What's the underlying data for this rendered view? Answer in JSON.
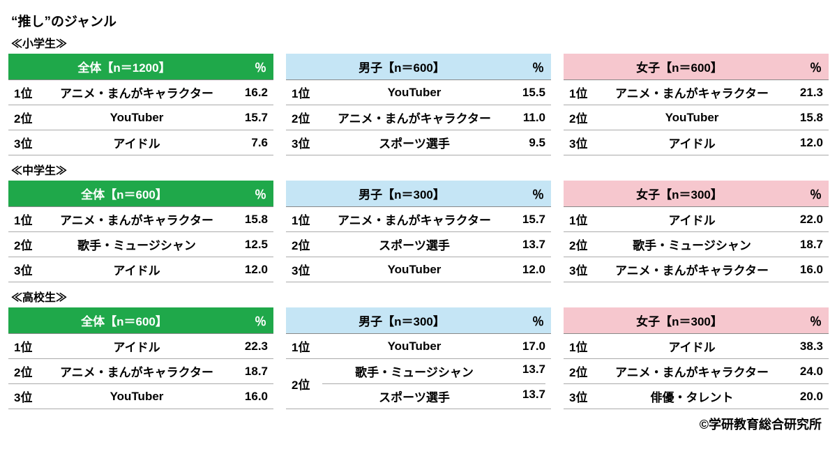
{
  "title": "“推し”のジャンル",
  "footer": "©学研教育総合研究所",
  "percentLabel": "％",
  "colors": {
    "green": "#1fa84a",
    "blue": "#c5e5f5",
    "pink": "#f6c7ce",
    "border": "#aaaaaa",
    "text": "#000000",
    "bg": "#ffffff"
  },
  "groups": [
    {
      "label": "≪小学生≫",
      "panels": [
        {
          "color": "green",
          "header": "全体【n＝1200】",
          "rows": [
            {
              "rank": "1位",
              "item": "アニメ・まんがキャラクター",
              "pct": "16.2"
            },
            {
              "rank": "2位",
              "item": "YouTuber",
              "pct": "15.7"
            },
            {
              "rank": "3位",
              "item": "アイドル",
              "pct": "7.6"
            }
          ]
        },
        {
          "color": "blue",
          "header": "男子【n＝600】",
          "rows": [
            {
              "rank": "1位",
              "item": "YouTuber",
              "pct": "15.5"
            },
            {
              "rank": "2位",
              "item": "アニメ・まんがキャラクター",
              "pct": "11.0"
            },
            {
              "rank": "3位",
              "item": "スポーツ選手",
              "pct": "9.5"
            }
          ]
        },
        {
          "color": "pink",
          "header": "女子【n＝600】",
          "rows": [
            {
              "rank": "1位",
              "item": "アニメ・まんがキャラクター",
              "pct": "21.3"
            },
            {
              "rank": "2位",
              "item": "YouTuber",
              "pct": "15.8"
            },
            {
              "rank": "3位",
              "item": "アイドル",
              "pct": "12.0"
            }
          ]
        }
      ]
    },
    {
      "label": "≪中学生≫",
      "panels": [
        {
          "color": "green",
          "header": "全体【n＝600】",
          "rows": [
            {
              "rank": "1位",
              "item": "アニメ・まんがキャラクター",
              "pct": "15.8"
            },
            {
              "rank": "2位",
              "item": "歌手・ミュージシャン",
              "pct": "12.5"
            },
            {
              "rank": "3位",
              "item": "アイドル",
              "pct": "12.0"
            }
          ]
        },
        {
          "color": "blue",
          "header": "男子【n＝300】",
          "rows": [
            {
              "rank": "1位",
              "item": "アニメ・まんがキャラクター",
              "pct": "15.7"
            },
            {
              "rank": "2位",
              "item": "スポーツ選手",
              "pct": "13.7"
            },
            {
              "rank": "3位",
              "item": "YouTuber",
              "pct": "12.0"
            }
          ]
        },
        {
          "color": "pink",
          "header": "女子【n＝300】",
          "rows": [
            {
              "rank": "1位",
              "item": "アイドル",
              "pct": "22.0"
            },
            {
              "rank": "2位",
              "item": "歌手・ミュージシャン",
              "pct": "18.7"
            },
            {
              "rank": "3位",
              "item": "アニメ・まんがキャラクター",
              "pct": "16.0"
            }
          ]
        }
      ]
    },
    {
      "label": "≪高校生≫",
      "panels": [
        {
          "color": "green",
          "header": "全体【n＝600】",
          "rows": [
            {
              "rank": "1位",
              "item": "アイドル",
              "pct": "22.3"
            },
            {
              "rank": "2位",
              "item": "アニメ・まんがキャラクター",
              "pct": "18.7"
            },
            {
              "rank": "3位",
              "item": "YouTuber",
              "pct": "16.0"
            }
          ]
        },
        {
          "color": "blue",
          "header": "男子【n＝300】",
          "rows": [
            {
              "rank": "1位",
              "item": "YouTuber",
              "pct": "17.0"
            }
          ],
          "tiedRank": "2位",
          "tiedRows": [
            {
              "item": "歌手・ミュージシャン",
              "pct": "13.7"
            },
            {
              "item": "スポーツ選手",
              "pct": "13.7"
            }
          ]
        },
        {
          "color": "pink",
          "header": "女子【n＝300】",
          "rows": [
            {
              "rank": "1位",
              "item": "アイドル",
              "pct": "38.3"
            },
            {
              "rank": "2位",
              "item": "アニメ・まんがキャラクター",
              "pct": "24.0"
            },
            {
              "rank": "3位",
              "item": "俳優・タレント",
              "pct": "20.0"
            }
          ]
        }
      ]
    }
  ]
}
